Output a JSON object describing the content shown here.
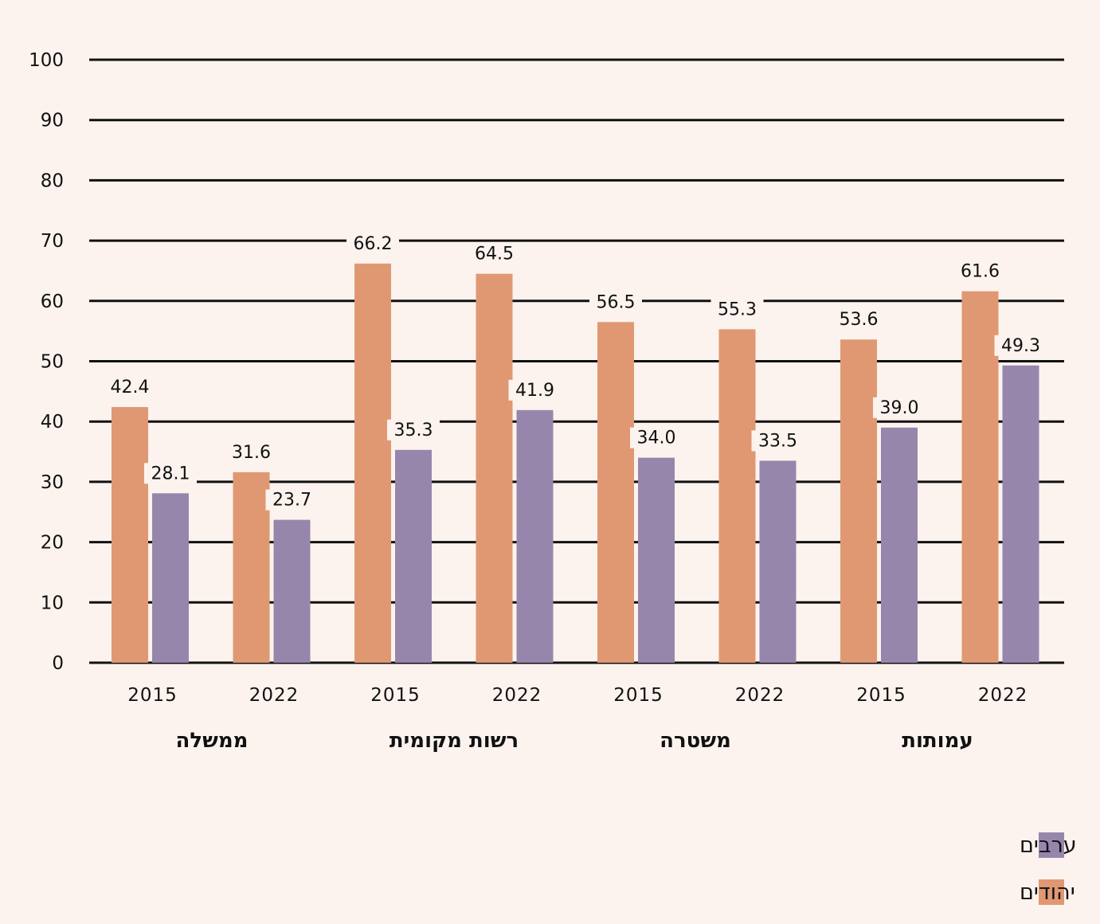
{
  "chart_data": {
    "type": "bar",
    "title": "",
    "xlabel": "",
    "ylabel": "",
    "ylim": [
      0,
      100
    ],
    "yticks": [
      0,
      10,
      20,
      30,
      40,
      50,
      60,
      70,
      80,
      90,
      100
    ],
    "grid": true,
    "groups": [
      "ממשלה",
      "רשות מקומית",
      "משטרה",
      "עמותות"
    ],
    "categories": [
      "2015",
      "2022",
      "2015",
      "2022",
      "2015",
      "2022",
      "2015",
      "2022"
    ],
    "series": [
      {
        "name": "יהודים",
        "color": "#e09873",
        "values": [
          42.4,
          31.6,
          66.2,
          64.5,
          56.5,
          55.3,
          53.6,
          61.6
        ]
      },
      {
        "name": "ערבים",
        "color": "#9786ac",
        "values": [
          28.1,
          23.7,
          35.3,
          41.9,
          34.0,
          33.5,
          39.0,
          49.3
        ]
      }
    ],
    "legend_order": [
      "ערבים",
      "יהודים"
    ],
    "legend_position": "bottom-right"
  }
}
